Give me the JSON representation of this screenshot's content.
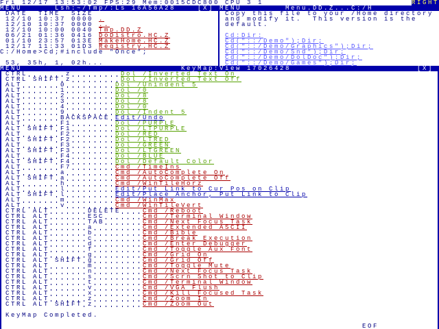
{
  "status_bar": {
    "text": "Fri 12/17 13:53:02 FPS:29 Mem:0015CDC800 CPU 3 1",
    "right": "RIGHT"
  },
  "dir_window": {
    "menu": "MENU",
    "title": "Lsh:~/Tmp/:Ls 16A56A28",
    "close": "[X]",
    "header": "DATE  TIME  SIZE",
    "entries": [
      {
        "date": "12/10",
        "time": "10:37",
        "size": "0000",
        "name": "."
      },
      {
        "date": "12/10",
        "time": "10:37",
        "size": "0000",
        "name": ".."
      },
      {
        "date": "12/10",
        "time": "10:00",
        "size": "0040",
        "name": "Tmp.DD.Z"
      },
      {
        "date": "06/21",
        "time": "01:36",
        "size": "0416",
        "name": "DoDistro.HC.Z"
      },
      {
        "date": "01/10",
        "time": "23:57",
        "size": "013E",
        "name": "MakeHome.HC.Z"
      },
      {
        "date": "12/17",
        "time": "11:33",
        "size": "01D3",
        "name": "Registry.HC.Z"
      }
    ],
    "prompt": "C:/Home>Cd;#include \"Once\";",
    "last": "53, 35h, 1, 02h..."
  },
  "doc_window": {
    "menu": "MENU",
    "title": "Menu.DD.Z...C:/H",
    "lines": [
      "Copy this file to your /Home directory",
      "and modify it.  This version is the",
      "default.",
      "",
      "Cd:Dir:",
      "Cd(\"::/Demo\");Dir;",
      "Cd(\"::/Demo/Graphics\");Dir;",
      "Cd(\"::/Demo/Snd\");Dir;",
      "Cd(\"::/Demo/DolDoc\");Dir;",
      "Cd(\"::/Demo/Games\");Dir;"
    ]
  },
  "keymap_window": {
    "menu": "MENU",
    "title": "KeyMap:View 17026428",
    "close": "[X]",
    "rows": [
      {
        "mods": "CTRL",
        "key": "z",
        "action": "Dol /Inverted Text On"
      },
      {
        "mods": "CTRL SHIFT",
        "key": "z",
        "action": "Dol /Inverted Text Off"
      },
      {
        "mods": "ALT",
        "key": "0",
        "action": "Dol /Unindent 5"
      },
      {
        "mods": "ALT",
        "key": "1",
        "action": "Dol /0"
      },
      {
        "mods": "ALT",
        "key": "2",
        "action": "Dol /8"
      },
      {
        "mods": "ALT",
        "key": "3",
        "action": "Dol /8"
      },
      {
        "mods": "ALT",
        "key": "4",
        "action": "Dol /0"
      },
      {
        "mods": "ALT",
        "key": "9",
        "action": "Dol /Indent 5"
      },
      {
        "mods": "ALT",
        "key": "BACKSPACE",
        "action": "Edit/Undo"
      },
      {
        "mods": "ALT",
        "key": "F1",
        "action": "Dol /PURPLE"
      },
      {
        "mods": "ALT SHIFT",
        "key": "F1",
        "action": "Dol /LTPURPLE"
      },
      {
        "mods": "ALT",
        "key": "F2",
        "action": "Dol /RED"
      },
      {
        "mods": "ALT SHIFT",
        "key": "F2",
        "action": "Dol /LTRED"
      },
      {
        "mods": "ALT",
        "key": "F3",
        "action": "Dol /GREEN"
      },
      {
        "mods": "ALT SHIFT",
        "key": "F3",
        "action": "Dol /LTGREEN"
      },
      {
        "mods": "ALT",
        "key": "F4",
        "action": "Dol /BLUE"
      },
      {
        "mods": "ALT SHIFT",
        "key": "F4",
        "action": "Dol /Default Color"
      },
      {
        "mods": "ALT",
        "key": "F7",
        "action": "Cmd /TimeIns"
      },
      {
        "mods": "ALT",
        "key": "a",
        "action": "Cmd /AutoComplete On"
      },
      {
        "mods": "ALT SHIFT",
        "key": "a",
        "action": "Cmd /AutoComplete Off"
      },
      {
        "mods": "ALT",
        "key": "h",
        "action": "Cmd /WinTileHorz"
      },
      {
        "mods": "ALT",
        "key": "l",
        "action": "Edit/Put Link to Cur Pos on Clip"
      },
      {
        "mods": "ALT SHIFT",
        "key": "l",
        "action": "Edit/Place Anchor, Put Link to Clip"
      },
      {
        "mods": "ALT",
        "key": "m",
        "action": "Cmd /WinMax"
      },
      {
        "mods": "ALT",
        "key": "v",
        "action": "Cmd /WinTileVert"
      },
      {
        "mods": "CTRL ALT",
        "key": "DELETE",
        "action": "Cmd /Reboot"
      },
      {
        "mods": "CTRL ALT",
        "key": "ESC",
        "action": "Cmd /Terminal Window"
      },
      {
        "mods": "CTRL ALT",
        "key": "TAB",
        "action": "Cmd /Next Focus Task"
      },
      {
        "mods": "CTRL ALT",
        "key": "a",
        "action": "Cmd /Extended ASCII"
      },
      {
        "mods": "CTRL ALT",
        "key": "b",
        "action": "Cmd /Bible"
      },
      {
        "mods": "CTRL ALT",
        "key": "c",
        "action": "Cmd /Break Execution"
      },
      {
        "mods": "CTRL ALT",
        "key": "d",
        "action": "Cmd /Enter Debugger"
      },
      {
        "mods": "CTRL ALT",
        "key": "f",
        "action": "Cmd /Toggle Aux Font"
      },
      {
        "mods": "CTRL ALT",
        "key": "g",
        "action": "Cmd /Grid On"
      },
      {
        "mods": "CTRL ALT SHIFT",
        "key": "g",
        "action": "Cmd /Grid Off"
      },
      {
        "mods": "CTRL ALT",
        "key": "m",
        "action": "Cmd /Toggle Mute"
      },
      {
        "mods": "CTRL ALT",
        "key": "n",
        "action": "Cmd /Next Focus Task"
      },
      {
        "mods": "CTRL ALT",
        "key": "s",
        "action": "Cmd /Scrn Shot to Clip"
      },
      {
        "mods": "CTRL ALT",
        "key": "t",
        "action": "Cmd /Terminal Window"
      },
      {
        "mods": "CTRL ALT",
        "key": "v",
        "action": "Cmd /VGA Flush"
      },
      {
        "mods": "CTRL ALT",
        "key": "x",
        "action": "Cmd /Kill Focused Task"
      },
      {
        "mods": "CTRL ALT",
        "key": "z",
        "action": "Cmd /Zoom In"
      },
      {
        "mods": "CTRL ALT SHIFT",
        "key": "z",
        "action": "Cmd /Zoom Out"
      }
    ],
    "footer": "KeyMap Completed.",
    "eof": "EOF"
  }
}
